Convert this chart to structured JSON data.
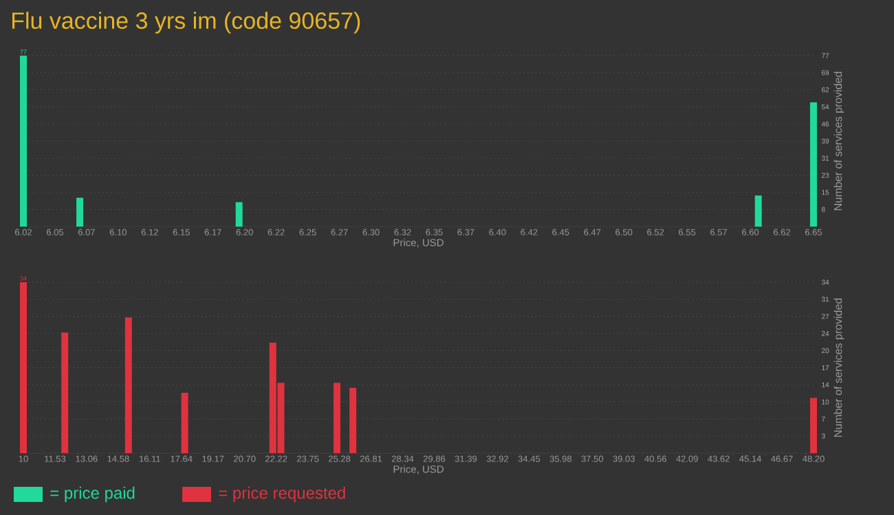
{
  "chart_data": [
    {
      "type": "bar",
      "title": "Flu vaccine 3 yrs im (code 90657)",
      "xlabel": "Price, USD",
      "ylabel": "Number of services provided",
      "x": [
        6.02,
        6.065,
        6.192,
        6.606,
        6.65
      ],
      "series": [
        {
          "name": "= price paid",
          "color": "#21d99b",
          "values": [
            77,
            13,
            11,
            14,
            56
          ],
          "value_labels": [
            "77",
            null,
            null,
            null,
            null
          ]
        }
      ],
      "xlim": [
        6.02,
        6.65
      ],
      "ylim": [
        0,
        77
      ],
      "xticks": [
        6.02,
        {
          "value": 6.0452,
          "label": "6.05"
        },
        {
          "value": 6.0704,
          "label": "6.07"
        },
        {
          "value": 6.0956,
          "label": "6.10"
        },
        {
          "value": 6.1208,
          "label": "6.12"
        },
        {
          "value": 6.146,
          "label": "6.15"
        },
        {
          "value": 6.1712,
          "label": "6.17"
        },
        {
          "value": 6.1964,
          "label": "6.20"
        },
        {
          "value": 6.2216,
          "label": "6.22"
        },
        {
          "value": 6.2468,
          "label": "6.25"
        },
        {
          "value": 6.272,
          "label": "6.27"
        },
        {
          "value": 6.2972,
          "label": "6.30"
        },
        {
          "value": 6.3224,
          "label": "6.32"
        },
        {
          "value": 6.3476,
          "label": "6.35"
        },
        {
          "value": 6.3728,
          "label": "6.37"
        },
        {
          "value": 6.398,
          "label": "6.40"
        },
        {
          "value": 6.4232,
          "label": "6.42"
        },
        {
          "value": 6.4484,
          "label": "6.45"
        },
        {
          "value": 6.4736,
          "label": "6.47"
        },
        {
          "value": 6.4988,
          "label": "6.50"
        },
        {
          "value": 6.524,
          "label": "6.52"
        },
        {
          "value": 6.5492,
          "label": "6.55"
        },
        {
          "value": 6.5744,
          "label": "6.57"
        },
        {
          "value": 6.5996,
          "label": "6.60"
        },
        {
          "value": 6.6248,
          "label": "6.62"
        },
        6.65
      ],
      "yticks": [
        {
          "value": 7.7,
          "label": "8"
        },
        {
          "value": 15.4,
          "label": "15"
        },
        {
          "value": 23.1,
          "label": "23"
        },
        {
          "value": 30.8,
          "label": "31"
        },
        {
          "value": 38.5,
          "label": "39"
        },
        {
          "value": 46.2,
          "label": "46"
        },
        {
          "value": 53.9,
          "label": "54"
        },
        {
          "value": 61.6,
          "label": "62"
        },
        {
          "value": 69.3,
          "label": "69"
        },
        77
      ],
      "grid": "y",
      "legend": "bottom left"
    },
    {
      "type": "bar",
      "xlabel": "Price, USD",
      "ylabel": "Number of services provided",
      "x": [
        10,
        12.0,
        15.08,
        17.8,
        22.06,
        22.45,
        25.16,
        25.93,
        48.2
      ],
      "series": [
        {
          "name": "= price requested",
          "color": "#e0323f",
          "values": [
            34,
            24,
            27,
            12,
            22,
            14,
            14,
            13,
            11
          ],
          "value_labels": [
            "34",
            null,
            null,
            null,
            null,
            null,
            null,
            null,
            null
          ]
        }
      ],
      "xlim": [
        10,
        48.2
      ],
      "ylim": [
        0,
        34
      ],
      "xticks": [
        10,
        {
          "value": 11.528,
          "label": "11.53"
        },
        {
          "value": 13.056,
          "label": "13.06"
        },
        {
          "value": 14.584,
          "label": "14.58"
        },
        {
          "value": 16.112,
          "label": "16.11"
        },
        17.64,
        {
          "value": 19.168,
          "label": "19.17"
        },
        {
          "value": 20.696,
          "label": "20.70"
        },
        {
          "value": 22.224,
          "label": "22.22"
        },
        {
          "value": 23.752,
          "label": "23.75"
        },
        25.28,
        {
          "value": 26.808,
          "label": "26.81"
        },
        {
          "value": 28.336,
          "label": "28.34"
        },
        {
          "value": 29.864,
          "label": "29.86"
        },
        {
          "value": 31.392,
          "label": "31.39"
        },
        32.92,
        {
          "value": 34.448,
          "label": "34.45"
        },
        {
          "value": 35.976,
          "label": "35.98"
        },
        {
          "value": 37.504,
          "label": "37.50"
        },
        {
          "value": 39.032,
          "label": "39.03"
        },
        40.56,
        {
          "value": 42.088,
          "label": "42.09"
        },
        {
          "value": 43.616,
          "label": "43.62"
        },
        {
          "value": 45.144,
          "label": "45.14"
        },
        {
          "value": 46.672,
          "label": "46.67"
        },
        {
          "value": 48.2,
          "label": "48.20"
        }
      ],
      "yticks": [
        {
          "value": 3.4,
          "label": "3"
        },
        {
          "value": 6.8,
          "label": "7"
        },
        {
          "value": 10.2,
          "label": "10"
        },
        {
          "value": 13.6,
          "label": "14"
        },
        17,
        {
          "value": 20.4,
          "label": "20"
        },
        {
          "value": 23.8,
          "label": "24"
        },
        {
          "value": 27.2,
          "label": "27"
        },
        {
          "value": 30.6,
          "label": "31"
        },
        34
      ],
      "grid": "y",
      "legend": "bottom left"
    }
  ]
}
